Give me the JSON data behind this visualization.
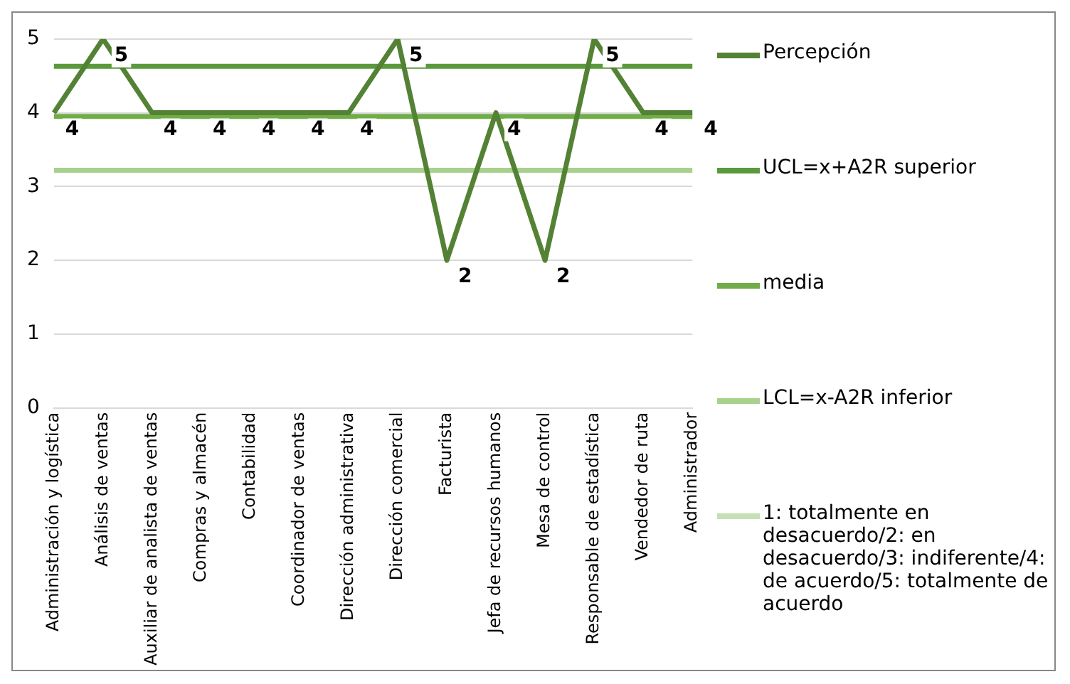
{
  "chart_data": {
    "type": "line",
    "categories": [
      "Administración y logística",
      "Análisis de ventas",
      "Auxiliar de analista de ventas",
      "Compras y almacén",
      "Contabilidad",
      "Coordinador de ventas",
      "Dirección administrativa",
      "Dirección comercial",
      "Facturista",
      "Jefa de recursos humanos",
      "Mesa de control",
      "Responsable de estadística",
      "Vendedor de ruta",
      "Administrador"
    ],
    "series": [
      {
        "name": "Percepción",
        "color": "#548235",
        "values": [
          4,
          5,
          4,
          4,
          4,
          4,
          4,
          5,
          2,
          4,
          2,
          5,
          4,
          4
        ],
        "value_labels": [
          "4",
          "5",
          "4",
          "4",
          "4",
          "4",
          "4",
          "5",
          "2",
          "4",
          "2",
          "5",
          "4",
          "4"
        ]
      },
      {
        "name": "UCL=x+A2R superior",
        "color": "#5b9a3c",
        "values": [
          4.63,
          4.63,
          4.63,
          4.63,
          4.63,
          4.63,
          4.63,
          4.63,
          4.63,
          4.63,
          4.63,
          4.63,
          4.63,
          4.63
        ]
      },
      {
        "name": "media",
        "color": "#70ad47",
        "values": [
          3.95,
          3.95,
          3.95,
          3.95,
          3.95,
          3.95,
          3.95,
          3.95,
          3.95,
          3.95,
          3.95,
          3.95,
          3.95,
          3.95
        ]
      },
      {
        "name": "LCL=x-A2R inferior",
        "color": "#a9d18e",
        "values": [
          3.22,
          3.22,
          3.22,
          3.22,
          3.22,
          3.22,
          3.22,
          3.22,
          3.22,
          3.22,
          3.22,
          3.22,
          3.22,
          3.22
        ]
      },
      {
        "name": "1: totalmente en desacuerdo/2: en desacuerdo/3: indiferente/4: de acuerdo/5: totalmente de acuerdo",
        "color": "#c5e0b4",
        "values": [
          null,
          null,
          null,
          null,
          null,
          null,
          null,
          null,
          null,
          null,
          null,
          null,
          null,
          null
        ]
      }
    ],
    "ylim": [
      0,
      5
    ],
    "yticks": [
      0,
      1,
      2,
      3,
      4,
      5
    ],
    "grid": "y",
    "legend": "right",
    "marker": "none",
    "line_style": "solid"
  }
}
